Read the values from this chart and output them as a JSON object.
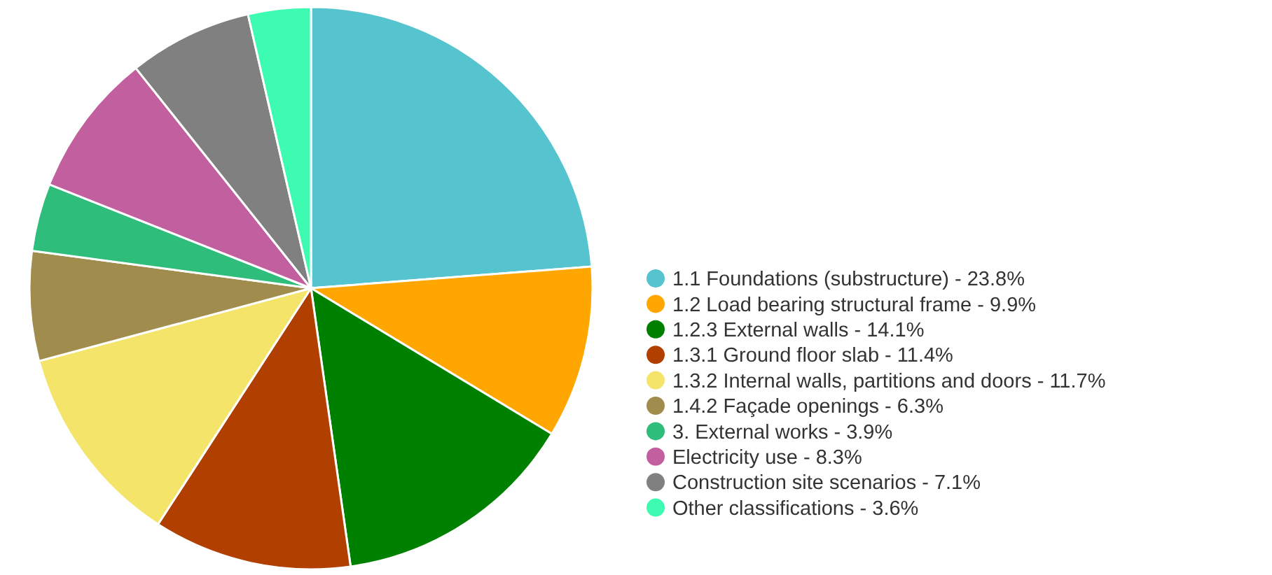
{
  "chart_data": {
    "type": "pie",
    "categories": [
      "1.1 Foundations (substructure) - 23.8%",
      "1.2 Load bearing structural frame - 9.9%",
      "1.2.3 External walls - 14.1%",
      "1.3.1 Ground floor slab - 11.4%",
      "1.3.2 Internal walls, partitions and doors - 11.7%",
      "1.4.2 Façade openings - 6.3%",
      "3. External works - 3.9%",
      "Electricity use - 8.3%",
      "Construction site scenarios - 7.1%",
      "Other classifications - 3.6%"
    ],
    "values": [
      23.8,
      9.9,
      14.1,
      11.4,
      11.7,
      6.3,
      3.9,
      8.3,
      7.1,
      3.6
    ],
    "colors": [
      "#56c4cf",
      "#ffa600",
      "#008000",
      "#b03f00",
      "#f5e46a",
      "#a08d4d",
      "#2ebd7a",
      "#c25f9e",
      "#808080",
      "#3dfbb0"
    ],
    "legend": "right"
  }
}
